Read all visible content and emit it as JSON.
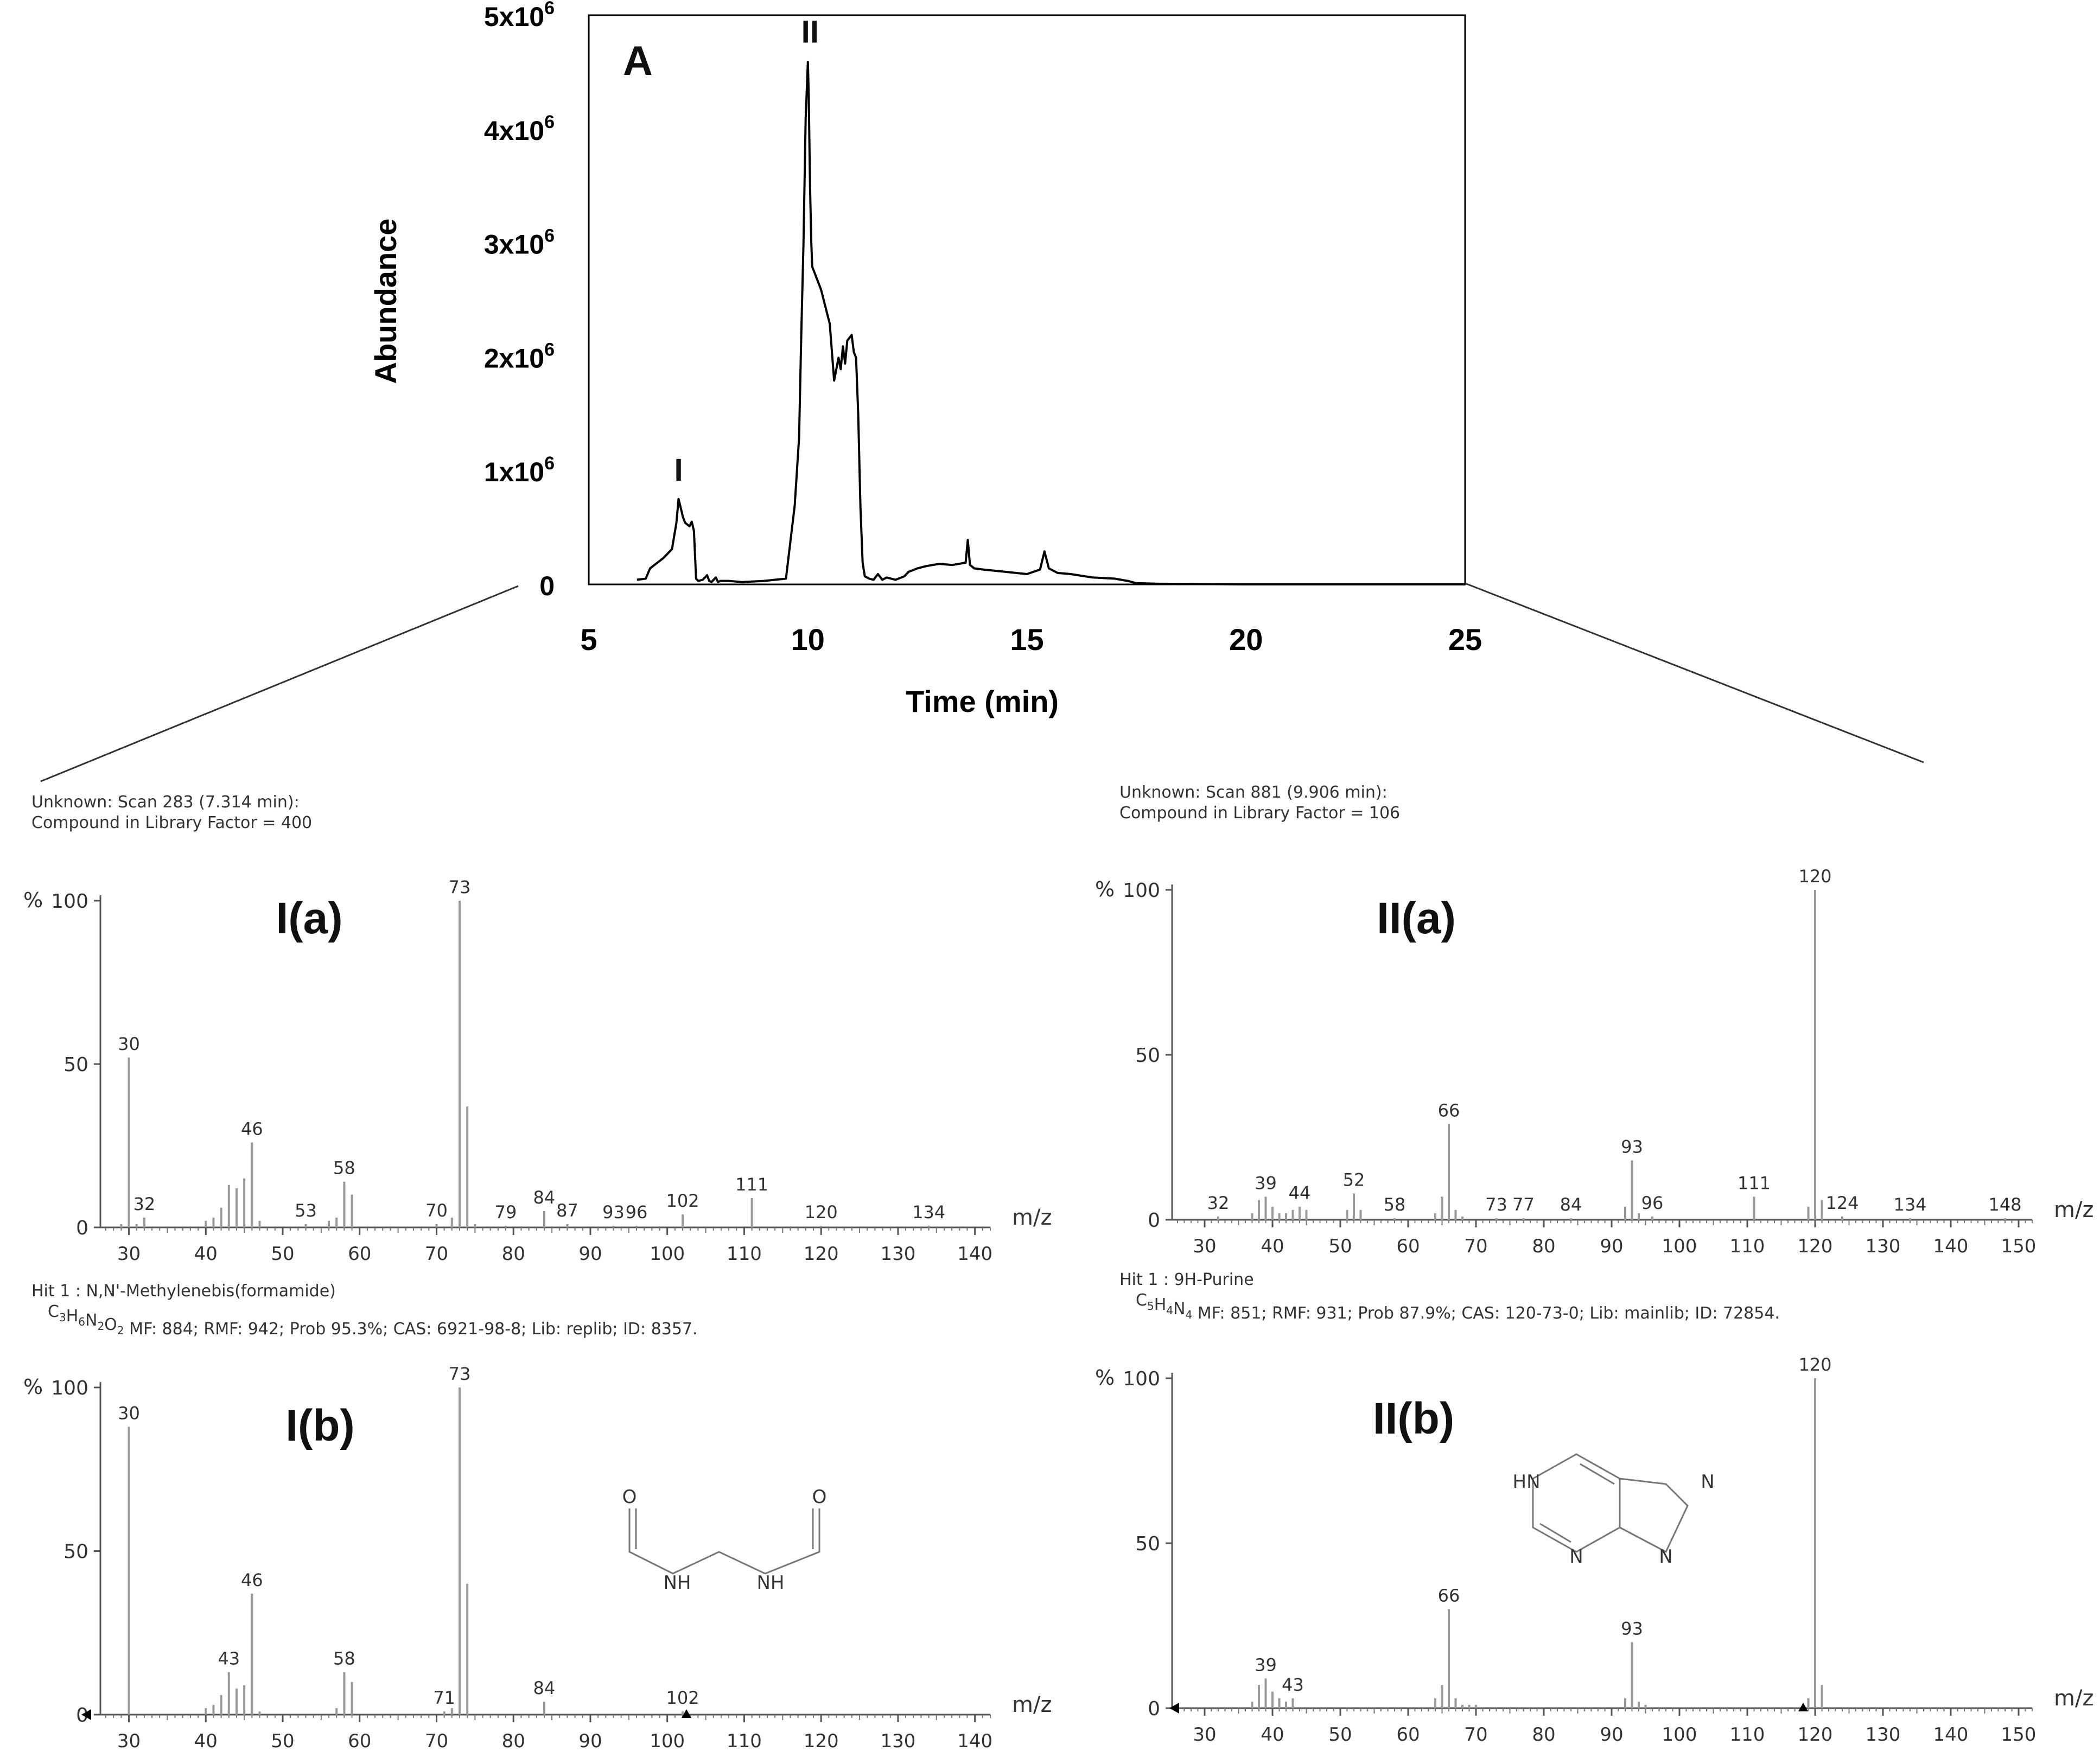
{
  "chart_data": [
    {
      "id": "chromatogram",
      "type": "line",
      "panel_label": "A",
      "xlabel": "Time (min)",
      "ylabel": "Abundance",
      "xlim": [
        5,
        25
      ],
      "ylim": [
        0,
        5000000
      ],
      "x_ticks": [
        "5",
        "10",
        "15",
        "20",
        "25"
      ],
      "y_ticks": [
        {
          "base": "0",
          "exp": ""
        },
        {
          "base": "1x10",
          "exp": "6"
        },
        {
          "base": "2x10",
          "exp": "6"
        },
        {
          "base": "3x10",
          "exp": "6"
        },
        {
          "base": "4x10",
          "exp": "6"
        },
        {
          "base": "5x10",
          "exp": "6"
        }
      ],
      "peak_labels": [
        {
          "text": "I",
          "x": 7.05,
          "y": 800000
        },
        {
          "text": "II",
          "x": 10.05,
          "y": 4650000
        }
      ],
      "series": [
        {
          "x": [
            6.1,
            6.3,
            6.4,
            6.5,
            6.6,
            6.7,
            6.8,
            6.9,
            7.0,
            7.05,
            7.1,
            7.15,
            7.2,
            7.3,
            7.35,
            7.4,
            7.45,
            7.5,
            7.6,
            7.7,
            7.75,
            7.8,
            7.9,
            7.95,
            8.0,
            8.2,
            8.5,
            9.0,
            9.5,
            9.7,
            9.8,
            9.85,
            9.9,
            9.95,
            10.0,
            10.02,
            10.05,
            10.08,
            10.1,
            10.15,
            10.2,
            10.3,
            10.4,
            10.5,
            10.6,
            10.7,
            10.75,
            10.8,
            10.85,
            10.9,
            11.0,
            11.05,
            11.1,
            11.15,
            11.2,
            11.25,
            11.3,
            11.4,
            11.5,
            11.6,
            11.7,
            11.8,
            12.0,
            12.2,
            12.3,
            12.5,
            12.7,
            13.0,
            13.3,
            13.6,
            13.65,
            13.7,
            13.8,
            14.0,
            14.5,
            15.0,
            15.3,
            15.4,
            15.5,
            15.7,
            16.0,
            16.5,
            17.0,
            17.3,
            17.5,
            18.0,
            20.0,
            22.0,
            25.0
          ],
          "y": [
            50000,
            60000,
            150000,
            180000,
            210000,
            240000,
            280000,
            320000,
            550000,
            760000,
            680000,
            600000,
            550000,
            520000,
            560000,
            480000,
            60000,
            40000,
            50000,
            90000,
            40000,
            30000,
            70000,
            30000,
            40000,
            40000,
            30000,
            40000,
            60000,
            700000,
            1300000,
            2200000,
            3000000,
            4100000,
            4600000,
            4300000,
            3500000,
            3000000,
            2800000,
            2750000,
            2700000,
            2600000,
            2450000,
            2300000,
            1800000,
            2000000,
            1900000,
            2100000,
            1950000,
            2150000,
            2200000,
            2050000,
            2000000,
            1500000,
            700000,
            200000,
            80000,
            60000,
            50000,
            100000,
            50000,
            70000,
            50000,
            80000,
            120000,
            150000,
            170000,
            190000,
            180000,
            200000,
            400000,
            180000,
            150000,
            140000,
            120000,
            100000,
            140000,
            300000,
            150000,
            110000,
            100000,
            70000,
            60000,
            40000,
            20000,
            15000,
            10000,
            10000,
            10000
          ]
        }
      ]
    },
    {
      "id": "ms-Ia",
      "type": "bar",
      "panel_label": "I(a)",
      "header_lines": [
        "Unknown: Scan 283 (7.314 min):",
        "Compound in Library Factor = 400"
      ],
      "y_unit_label": "%",
      "xlabel": "m/z",
      "xlim": [
        27,
        142
      ],
      "ylim": [
        0,
        100
      ],
      "x_ticks": [
        "30",
        "40",
        "50",
        "60",
        "70",
        "80",
        "90",
        "100",
        "110",
        "120",
        "130",
        "140"
      ],
      "y_ticks": [
        "0",
        "50",
        "100"
      ],
      "peaks": [
        {
          "mz": 29,
          "intensity": 1
        },
        {
          "mz": 30,
          "intensity": 52,
          "label": "30"
        },
        {
          "mz": 31,
          "intensity": 1
        },
        {
          "mz": 32,
          "intensity": 3,
          "label": "32"
        },
        {
          "mz": 40,
          "intensity": 2
        },
        {
          "mz": 41,
          "intensity": 3
        },
        {
          "mz": 42,
          "intensity": 6
        },
        {
          "mz": 43,
          "intensity": 13
        },
        {
          "mz": 44,
          "intensity": 12
        },
        {
          "mz": 45,
          "intensity": 15
        },
        {
          "mz": 46,
          "intensity": 26,
          "label": "46"
        },
        {
          "mz": 47,
          "intensity": 2
        },
        {
          "mz": 53,
          "intensity": 1,
          "label": "53"
        },
        {
          "mz": 56,
          "intensity": 2
        },
        {
          "mz": 57,
          "intensity": 3
        },
        {
          "mz": 58,
          "intensity": 14,
          "label": "58"
        },
        {
          "mz": 59,
          "intensity": 10
        },
        {
          "mz": 70,
          "intensity": 1,
          "label": "70"
        },
        {
          "mz": 72,
          "intensity": 3
        },
        {
          "mz": 73,
          "intensity": 100,
          "label": "73"
        },
        {
          "mz": 74,
          "intensity": 37
        },
        {
          "mz": 75,
          "intensity": 1
        },
        {
          "mz": 79,
          "intensity": 0.5,
          "label": "79"
        },
        {
          "mz": 84,
          "intensity": 5,
          "label": "84"
        },
        {
          "mz": 87,
          "intensity": 1,
          "label": "87"
        },
        {
          "mz": 93,
          "intensity": 0.5,
          "label": "93"
        },
        {
          "mz": 96,
          "intensity": 0.5,
          "label": "96"
        },
        {
          "mz": 102,
          "intensity": 4,
          "label": "102"
        },
        {
          "mz": 111,
          "intensity": 9,
          "label": "111"
        },
        {
          "mz": 120,
          "intensity": 0.5,
          "label": "120"
        },
        {
          "mz": 134,
          "intensity": 0.5,
          "label": "134"
        }
      ]
    },
    {
      "id": "ms-Ib",
      "type": "bar",
      "panel_label": "I(b)",
      "header_lines": [
        "Hit 1 : N,N'-Methylenebis(formamide)"
      ],
      "formula": {
        "parts": [
          {
            "t": "C",
            "s": "3"
          },
          {
            "t": "H",
            "s": "6"
          },
          {
            "t": "N",
            "s": "2"
          },
          {
            "t": "O",
            "s": "2"
          }
        ],
        "rest": " MF: 884; RMF: 942; Prob 95.3%; CAS: 6921-98-8; Lib: replib; ID: 8357."
      },
      "y_unit_label": "%",
      "xlabel": "m/z",
      "xlim": [
        27,
        142
      ],
      "ylim": [
        0,
        100
      ],
      "x_ticks": [
        "30",
        "40",
        "50",
        "60",
        "70",
        "80",
        "90",
        "100",
        "110",
        "120",
        "130",
        "140"
      ],
      "y_ticks": [
        "0",
        "50",
        "100"
      ],
      "structure_atom_labels": [
        "O",
        "O",
        "NH",
        "NH"
      ],
      "peaks": [
        {
          "mz": 30,
          "intensity": 88,
          "label": "30"
        },
        {
          "mz": 40,
          "intensity": 2
        },
        {
          "mz": 41,
          "intensity": 3
        },
        {
          "mz": 42,
          "intensity": 6
        },
        {
          "mz": 43,
          "intensity": 13,
          "label": "43"
        },
        {
          "mz": 44,
          "intensity": 8
        },
        {
          "mz": 45,
          "intensity": 9
        },
        {
          "mz": 46,
          "intensity": 37,
          "label": "46"
        },
        {
          "mz": 47,
          "intensity": 1
        },
        {
          "mz": 57,
          "intensity": 2
        },
        {
          "mz": 58,
          "intensity": 13,
          "label": "58"
        },
        {
          "mz": 59,
          "intensity": 10
        },
        {
          "mz": 71,
          "intensity": 1,
          "label": "71"
        },
        {
          "mz": 72,
          "intensity": 2
        },
        {
          "mz": 73,
          "intensity": 100,
          "label": "73"
        },
        {
          "mz": 74,
          "intensity": 40
        },
        {
          "mz": 84,
          "intensity": 4,
          "label": "84"
        },
        {
          "mz": 102,
          "intensity": 1,
          "label": "102"
        }
      ]
    },
    {
      "id": "ms-IIa",
      "type": "bar",
      "panel_label": "II(a)",
      "header_lines": [
        "Unknown: Scan 881 (9.906 min):",
        "Compound in Library Factor = 106"
      ],
      "y_unit_label": "%",
      "xlabel": "m/z",
      "xlim": [
        26,
        152
      ],
      "ylim": [
        0,
        100
      ],
      "x_ticks": [
        "30",
        "40",
        "50",
        "60",
        "70",
        "80",
        "90",
        "100",
        "110",
        "120",
        "130",
        "140",
        "150"
      ],
      "y_ticks": [
        "0",
        "50",
        "100"
      ],
      "peaks": [
        {
          "mz": 32,
          "intensity": 1,
          "label": "32"
        },
        {
          "mz": 37,
          "intensity": 2
        },
        {
          "mz": 38,
          "intensity": 6
        },
        {
          "mz": 39,
          "intensity": 7,
          "label": "39"
        },
        {
          "mz": 40,
          "intensity": 4
        },
        {
          "mz": 41,
          "intensity": 2
        },
        {
          "mz": 42,
          "intensity": 2
        },
        {
          "mz": 43,
          "intensity": 3
        },
        {
          "mz": 44,
          "intensity": 4,
          "label": "44"
        },
        {
          "mz": 45,
          "intensity": 3
        },
        {
          "mz": 51,
          "intensity": 3
        },
        {
          "mz": 52,
          "intensity": 8,
          "label": "52"
        },
        {
          "mz": 53,
          "intensity": 3
        },
        {
          "mz": 58,
          "intensity": 0.5,
          "label": "58"
        },
        {
          "mz": 64,
          "intensity": 2
        },
        {
          "mz": 65,
          "intensity": 7
        },
        {
          "mz": 66,
          "intensity": 29,
          "label": "66"
        },
        {
          "mz": 67,
          "intensity": 3
        },
        {
          "mz": 68,
          "intensity": 1
        },
        {
          "mz": 73,
          "intensity": 0.5,
          "label": "73"
        },
        {
          "mz": 77,
          "intensity": 0.5,
          "label": "77"
        },
        {
          "mz": 84,
          "intensity": 0.5,
          "label": "84"
        },
        {
          "mz": 92,
          "intensity": 4
        },
        {
          "mz": 93,
          "intensity": 18,
          "label": "93"
        },
        {
          "mz": 94,
          "intensity": 2
        },
        {
          "mz": 96,
          "intensity": 1,
          "label": "96"
        },
        {
          "mz": 111,
          "intensity": 7,
          "label": "111"
        },
        {
          "mz": 119,
          "intensity": 4
        },
        {
          "mz": 120,
          "intensity": 100,
          "label": "120"
        },
        {
          "mz": 121,
          "intensity": 6
        },
        {
          "mz": 124,
          "intensity": 1,
          "label": "124"
        },
        {
          "mz": 134,
          "intensity": 0.5,
          "label": "134"
        },
        {
          "mz": 148,
          "intensity": 0.5,
          "label": "148"
        }
      ]
    },
    {
      "id": "ms-IIb",
      "type": "bar",
      "panel_label": "II(b)",
      "header_lines": [
        "Hit 1 : 9H-Purine"
      ],
      "formula": {
        "parts": [
          {
            "t": "C",
            "s": "5"
          },
          {
            "t": "H",
            "s": "4"
          },
          {
            "t": "N",
            "s": "4"
          }
        ],
        "rest": "  MF: 851; RMF: 931; Prob 87.9%; CAS: 120-73-0; Lib: mainlib; ID: 72854."
      },
      "y_unit_label": "%",
      "xlabel": "m/z",
      "xlim": [
        26,
        152
      ],
      "ylim": [
        0,
        100
      ],
      "x_ticks": [
        "30",
        "40",
        "50",
        "60",
        "70",
        "80",
        "90",
        "100",
        "110",
        "120",
        "130",
        "140",
        "150"
      ],
      "y_ticks": [
        "0",
        "50",
        "100"
      ],
      "structure_atom_labels": [
        "HN",
        "N",
        "N",
        "N"
      ],
      "peaks": [
        {
          "mz": 37,
          "intensity": 2
        },
        {
          "mz": 38,
          "intensity": 7
        },
        {
          "mz": 39,
          "intensity": 9,
          "label": "39"
        },
        {
          "mz": 40,
          "intensity": 5
        },
        {
          "mz": 41,
          "intensity": 3
        },
        {
          "mz": 42,
          "intensity": 2
        },
        {
          "mz": 43,
          "intensity": 3,
          "label": "43"
        },
        {
          "mz": 64,
          "intensity": 3
        },
        {
          "mz": 65,
          "intensity": 7
        },
        {
          "mz": 66,
          "intensity": 30,
          "label": "66"
        },
        {
          "mz": 67,
          "intensity": 3
        },
        {
          "mz": 68,
          "intensity": 1
        },
        {
          "mz": 69,
          "intensity": 1
        },
        {
          "mz": 70,
          "intensity": 1
        },
        {
          "mz": 92,
          "intensity": 3
        },
        {
          "mz": 93,
          "intensity": 20,
          "label": "93"
        },
        {
          "mz": 94,
          "intensity": 2
        },
        {
          "mz": 95,
          "intensity": 1
        },
        {
          "mz": 119,
          "intensity": 3
        },
        {
          "mz": 120,
          "intensity": 100,
          "label": "120"
        },
        {
          "mz": 121,
          "intensity": 7
        }
      ]
    }
  ]
}
